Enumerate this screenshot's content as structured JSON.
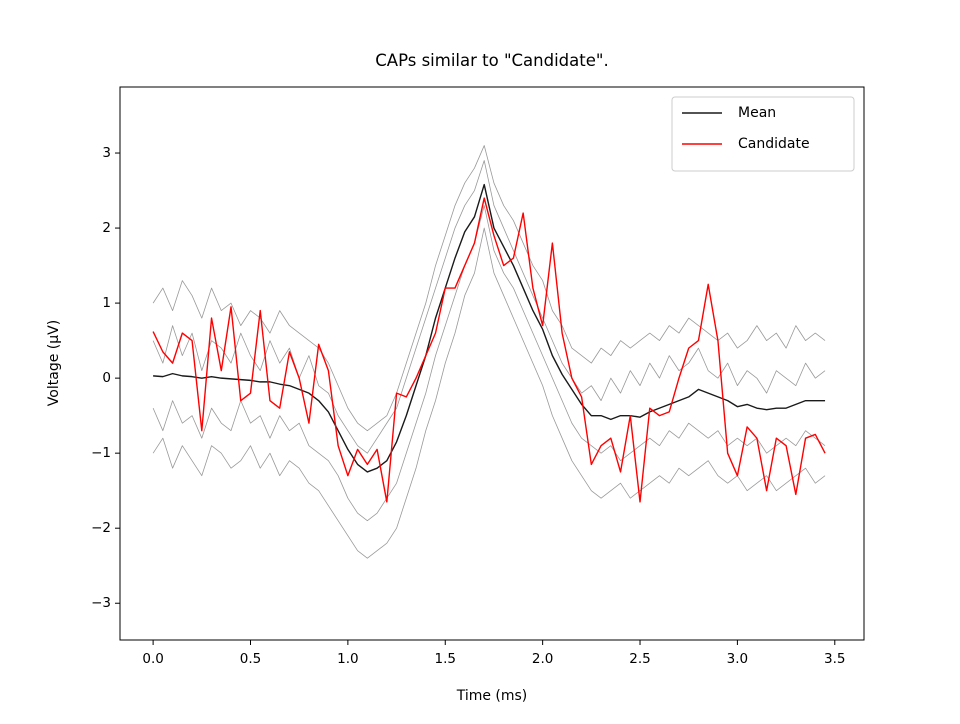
{
  "chart_data": {
    "type": "line",
    "title": "CAPs similar to \"Candidate\".",
    "x_label": "Time (ms)",
    "y_label": "Voltage (μV)",
    "x": [
      0,
      0.05,
      0.1,
      0.15,
      0.2,
      0.25,
      0.3,
      0.35,
      0.4,
      0.45,
      0.5,
      0.55,
      0.6,
      0.65,
      0.7,
      0.75,
      0.8,
      0.85,
      0.9,
      0.95,
      1.0,
      1.05,
      1.1,
      1.15,
      1.2,
      1.25,
      1.3,
      1.35,
      1.4,
      1.45,
      1.5,
      1.55,
      1.6,
      1.65,
      1.7,
      1.75,
      1.8,
      1.85,
      1.9,
      1.95,
      2.0,
      2.05,
      2.1,
      2.15,
      2.2,
      2.25,
      2.3,
      2.35,
      2.4,
      2.45,
      2.5,
      2.55,
      2.6,
      2.65,
      2.7,
      2.75,
      2.8,
      2.85,
      2.9,
      2.95,
      3.0,
      3.05,
      3.1,
      3.15,
      3.2,
      3.25,
      3.3,
      3.35,
      3.4,
      3.45
    ],
    "series": [
      {
        "color": "#999999",
        "values": [
          1.0,
          1.2,
          0.9,
          1.3,
          1.1,
          0.8,
          1.2,
          0.9,
          1.0,
          0.7,
          0.9,
          0.8,
          0.6,
          0.9,
          0.7,
          0.6,
          0.5,
          0.4,
          0.2,
          -0.1,
          -0.4,
          -0.6,
          -0.7,
          -0.6,
          -0.5,
          -0.2,
          0.2,
          0.6,
          1.0,
          1.5,
          1.9,
          2.3,
          2.6,
          2.8,
          3.1,
          2.6,
          2.3,
          2.1,
          1.8,
          1.5,
          1.3,
          0.9,
          0.7,
          0.4,
          0.3,
          0.2,
          0.4,
          0.3,
          0.5,
          0.4,
          0.5,
          0.6,
          0.5,
          0.7,
          0.6,
          0.8,
          0.7,
          0.6,
          0.5,
          0.6,
          0.4,
          0.5,
          0.7,
          0.5,
          0.6,
          0.4,
          0.7,
          0.5,
          0.6,
          0.5
        ]
      },
      {
        "color": "#999999",
        "values": [
          -1.0,
          -0.8,
          -1.2,
          -0.9,
          -1.1,
          -1.3,
          -0.9,
          -1.0,
          -1.2,
          -1.1,
          -0.9,
          -1.2,
          -1.0,
          -1.3,
          -1.1,
          -1.2,
          -1.4,
          -1.5,
          -1.7,
          -1.9,
          -2.1,
          -2.3,
          -2.4,
          -2.3,
          -2.2,
          -2.0,
          -1.6,
          -1.2,
          -0.7,
          -0.3,
          0.2,
          0.6,
          1.1,
          1.4,
          2.0,
          1.4,
          1.1,
          0.8,
          0.5,
          0.2,
          -0.1,
          -0.5,
          -0.8,
          -1.1,
          -1.3,
          -1.5,
          -1.6,
          -1.5,
          -1.4,
          -1.6,
          -1.5,
          -1.4,
          -1.3,
          -1.4,
          -1.2,
          -1.3,
          -1.2,
          -1.1,
          -1.3,
          -1.4,
          -1.3,
          -1.5,
          -1.4,
          -1.3,
          -1.5,
          -1.4,
          -1.3,
          -1.2,
          -1.4,
          -1.3
        ]
      },
      {
        "color": "#999999",
        "values": [
          0.5,
          0.2,
          0.7,
          0.3,
          0.6,
          0.1,
          0.5,
          0.4,
          0.2,
          0.6,
          0.3,
          0.1,
          0.5,
          0.2,
          0.4,
          0.0,
          0.3,
          -0.1,
          -0.2,
          -0.5,
          -0.7,
          -0.9,
          -1.0,
          -0.8,
          -0.6,
          -0.4,
          0.0,
          0.4,
          0.8,
          1.2,
          1.6,
          2.0,
          2.3,
          2.5,
          2.9,
          2.3,
          2.0,
          1.7,
          1.4,
          1.1,
          0.8,
          0.5,
          0.2,
          0.0,
          -0.2,
          -0.1,
          -0.3,
          0.0,
          -0.2,
          0.1,
          -0.1,
          0.2,
          0.0,
          0.3,
          0.1,
          0.2,
          0.4,
          0.1,
          0.0,
          0.2,
          -0.1,
          0.1,
          0.0,
          -0.2,
          0.1,
          0.0,
          -0.1,
          0.2,
          0.0,
          0.1
        ]
      },
      {
        "color": "#999999",
        "values": [
          -0.4,
          -0.7,
          -0.3,
          -0.6,
          -0.5,
          -0.8,
          -0.4,
          -0.6,
          -0.7,
          -0.3,
          -0.6,
          -0.5,
          -0.8,
          -0.5,
          -0.7,
          -0.6,
          -0.9,
          -1.0,
          -1.1,
          -1.3,
          -1.6,
          -1.8,
          -1.9,
          -1.8,
          -1.6,
          -1.4,
          -1.0,
          -0.6,
          -0.2,
          0.3,
          0.7,
          1.1,
          1.5,
          1.8,
          2.3,
          1.7,
          1.4,
          1.2,
          0.9,
          0.6,
          0.3,
          0.0,
          -0.3,
          -0.6,
          -0.8,
          -0.9,
          -1.0,
          -0.9,
          -1.1,
          -1.0,
          -0.9,
          -0.8,
          -0.9,
          -0.7,
          -0.8,
          -0.6,
          -0.7,
          -0.8,
          -0.7,
          -0.9,
          -0.8,
          -0.9,
          -0.8,
          -1.0,
          -0.9,
          -0.8,
          -0.9,
          -0.7,
          -0.8,
          -0.9
        ]
      },
      {
        "name": "Mean",
        "color": "#1a1a1a",
        "values": [
          0.03,
          0.02,
          0.06,
          0.03,
          0.02,
          0.0,
          0.02,
          0.0,
          -0.01,
          -0.02,
          -0.03,
          -0.05,
          -0.05,
          -0.08,
          -0.1,
          -0.15,
          -0.2,
          -0.3,
          -0.45,
          -0.7,
          -0.95,
          -1.15,
          -1.25,
          -1.2,
          -1.1,
          -0.85,
          -0.5,
          -0.1,
          0.3,
          0.8,
          1.2,
          1.6,
          1.95,
          2.15,
          2.58,
          2.0,
          1.75,
          1.5,
          1.2,
          0.9,
          0.65,
          0.3,
          0.05,
          -0.15,
          -0.35,
          -0.5,
          -0.5,
          -0.55,
          -0.5,
          -0.5,
          -0.52,
          -0.45,
          -0.4,
          -0.35,
          -0.3,
          -0.25,
          -0.15,
          -0.2,
          -0.25,
          -0.3,
          -0.38,
          -0.35,
          -0.4,
          -0.42,
          -0.4,
          -0.4,
          -0.35,
          -0.3,
          -0.3,
          -0.3
        ]
      },
      {
        "name": "Candidate",
        "color": "#ff0000",
        "values": [
          0.62,
          0.35,
          0.2,
          0.6,
          0.5,
          -0.7,
          0.8,
          0.1,
          0.95,
          -0.3,
          -0.2,
          0.9,
          -0.3,
          -0.4,
          0.35,
          0.0,
          -0.6,
          0.45,
          0.1,
          -0.9,
          -1.3,
          -0.95,
          -1.15,
          -0.95,
          -1.65,
          -0.2,
          -0.25,
          0.0,
          0.3,
          0.6,
          1.2,
          1.2,
          1.5,
          1.8,
          2.4,
          1.9,
          1.5,
          1.6,
          2.2,
          1.2,
          0.7,
          1.8,
          0.6,
          0.0,
          -0.25,
          -1.15,
          -0.9,
          -0.8,
          -1.25,
          -0.5,
          -1.65,
          -0.4,
          -0.5,
          -0.45,
          0.0,
          0.4,
          0.5,
          1.25,
          0.5,
          -1.0,
          -1.3,
          -0.65,
          -0.8,
          -1.5,
          -0.8,
          -0.9,
          -1.55,
          -0.8,
          -0.75,
          -1.0
        ]
      }
    ],
    "xlim": [
      -0.17,
      3.65
    ],
    "ylim": [
      -3.49,
      3.88
    ],
    "xticks": [
      {
        "value": 0,
        "label": "0.0"
      },
      0.5,
      {
        "value": 1,
        "label": "1.0"
      },
      1.5,
      {
        "value": 2,
        "label": "2.0"
      },
      2.5,
      {
        "value": 3,
        "label": "3.0"
      },
      3.5
    ],
    "yticks": [
      {
        "value": -3,
        "label": "−3"
      },
      {
        "value": -2,
        "label": "−2"
      },
      {
        "value": -1,
        "label": "−1"
      },
      0,
      1,
      2,
      3
    ],
    "legend": "upper right",
    "grid": false
  }
}
